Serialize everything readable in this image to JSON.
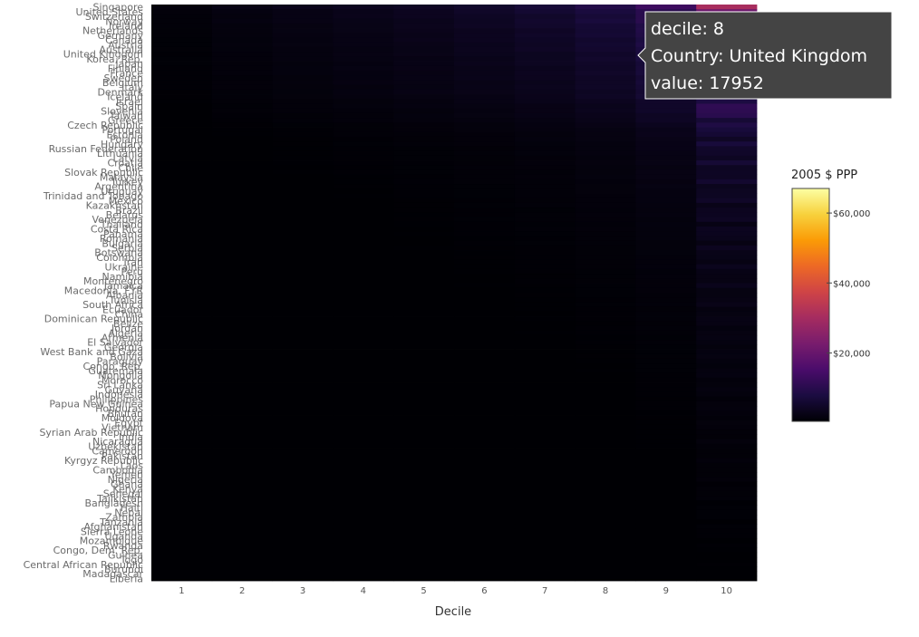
{
  "chart_data": {
    "type": "heatmap",
    "xlabel": "Decile",
    "x_categories": [
      "1",
      "2",
      "3",
      "4",
      "5",
      "6",
      "7",
      "8",
      "9",
      "10"
    ],
    "y_tick_labels": [
      "Singapore",
      "United States",
      "Switzerland",
      "Norway",
      "Ireland",
      "Netherlands",
      "Germany",
      "Canada",
      "Austria",
      "Australia",
      "United Kingdom",
      "Korea, Rep.",
      "Japan",
      "Finland",
      "France",
      "Sweden",
      "Belgium",
      "Italy",
      "Denmark",
      "Iceland",
      "Israel",
      "Spain",
      "Slovenia",
      "Taiwan",
      "Greece",
      "Czech Republic",
      "Portugal",
      "Estonia",
      "Poland",
      "Hungary",
      "Russian Federation",
      "Lithuania",
      "Latvia",
      "Croatia",
      "Chile",
      "Slovak Republic",
      "Malaysia",
      "Turkey",
      "Argentina",
      "Uruguay",
      "Trinidad and Tobago",
      "Mexico",
      "Kazakhstan",
      "Brazil",
      "Belarus",
      "Venezuela",
      "Thailand",
      "Costa Rica",
      "Panama",
      "Romania",
      "Bulgaria",
      "Serbia",
      "Botswana",
      "Colombia",
      "Iran",
      "Ukraine",
      "Peru",
      "Namibia",
      "Montenegro",
      "Jamaica",
      "Macedonia, FYR",
      "Albania",
      "Tunisia",
      "South Africa",
      "Ecuador",
      "China",
      "Dominican Republic",
      "Belize",
      "Jordan",
      "Algeria",
      "Armenia",
      "El Salvador",
      "Georgia",
      "West Bank and Gaza",
      "Bolivia",
      "Paraguay",
      "Congo, Rep.",
      "Guatemala",
      "Mongolia",
      "Morocco",
      "Sri Lanka",
      "Guyana",
      "Indonesia",
      "Philippines",
      "Papua New Guinea",
      "Honduras",
      "Bhutan",
      "Moldova",
      "Egypt",
      "Vietnam",
      "Syrian Arab Republic",
      "India",
      "Nicaragua",
      "Uzbekistan",
      "Cameroon",
      "Pakistan",
      "Kyrgyz Republic",
      "Laos",
      "Cambodia",
      "Yemen",
      "Nigeria",
      "Ghana",
      "Kenya",
      "Senegal",
      "Tajikistan",
      "Bangladesh",
      "Haiti",
      "Nepal",
      "Zambia",
      "Tanzania",
      "Afghanistan",
      "Sierra Leone",
      "Uganda",
      "Mozambique",
      "Rwanda",
      "Congo, Dem. Rep.",
      "Guinea",
      "Togo",
      "Central African Republic",
      "Burundi",
      "Madagascar",
      "Liberia"
    ],
    "colorscale_title": "2005 $ PPP",
    "colorscale_range": [
      500,
      67000
    ],
    "colorbar_ticks": [
      "$20,000",
      "$40,000",
      "$60,000"
    ],
    "colorbar_tick_values": [
      20000,
      40000,
      60000
    ],
    "colorscale_stops": [
      "#000004",
      "#1b0c41",
      "#4a0c6b",
      "#781c6d",
      "#a52c60",
      "#cf4446",
      "#ed6925",
      "#fb9b06",
      "#f7d13d",
      "#fcffa4"
    ],
    "row_scale": [
      1.0,
      0.85,
      0.8,
      0.78,
      0.74,
      0.7,
      0.68,
      0.66,
      0.65,
      0.62,
      0.6,
      0.58,
      0.56,
      0.55,
      0.54,
      0.53,
      0.52,
      0.5,
      0.5,
      0.48,
      0.42,
      0.4,
      0.38,
      0.36,
      0.34,
      0.28,
      0.26,
      0.24,
      0.23,
      0.22,
      0.2,
      0.2,
      0.19,
      0.19,
      0.18,
      0.18,
      0.18,
      0.17,
      0.17,
      0.16,
      0.16,
      0.15,
      0.15,
      0.14,
      0.14,
      0.14,
      0.13,
      0.13,
      0.13,
      0.12,
      0.12,
      0.12,
      0.11,
      0.11,
      0.11,
      0.11,
      0.1,
      0.1,
      0.1,
      0.1,
      0.09,
      0.09,
      0.09,
      0.09,
      0.085,
      0.085,
      0.085,
      0.08,
      0.08,
      0.08,
      0.075,
      0.075,
      0.075,
      0.07,
      0.07,
      0.07,
      0.065,
      0.065,
      0.065,
      0.06,
      0.06,
      0.06,
      0.058,
      0.056,
      0.055,
      0.054,
      0.053,
      0.052,
      0.05,
      0.049,
      0.048,
      0.047,
      0.046,
      0.045,
      0.044,
      0.043,
      0.042,
      0.041,
      0.04,
      0.039,
      0.038,
      0.037,
      0.036,
      0.035,
      0.034,
      0.033,
      0.032,
      0.031,
      0.03,
      0.029,
      0.028,
      0.027,
      0.026,
      0.025,
      0.024,
      0.023,
      0.022,
      0.021,
      0.02,
      0.019,
      0.018,
      0.017
    ],
    "decile_profile": [
      1400,
      2300,
      3000,
      3700,
      4500,
      5500,
      6800,
      8800,
      12500,
      26000
    ],
    "tooltip": {
      "line1": "decile: 8",
      "line2": "Country: United Kingdom",
      "line3": "value: 17952"
    }
  }
}
